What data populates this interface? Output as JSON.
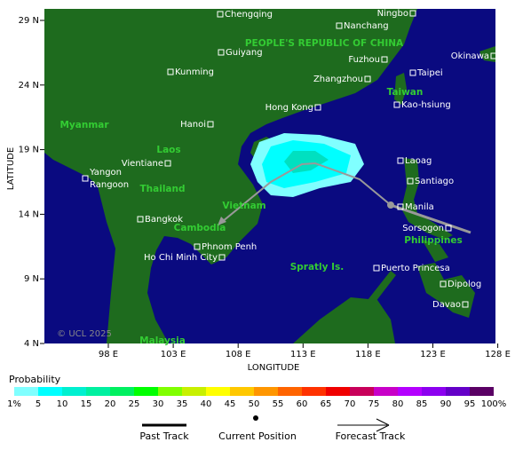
{
  "map": {
    "x_label": "LONGITUDE",
    "y_label": "LATITUDE",
    "xticks": [
      {
        "value": 98,
        "label": "98 E"
      },
      {
        "value": 103,
        "label": "103 E"
      },
      {
        "value": 108,
        "label": "108 E"
      },
      {
        "value": 113,
        "label": "113 E"
      },
      {
        "value": 118,
        "label": "118 E"
      },
      {
        "value": 123,
        "label": "123 E"
      },
      {
        "value": 128,
        "label": "128 E"
      }
    ],
    "yticks": [
      {
        "value": 29,
        "label": "29 N"
      },
      {
        "value": 24,
        "label": "24 N"
      },
      {
        "value": 19,
        "label": "19 N"
      },
      {
        "value": 14,
        "label": "14 N"
      },
      {
        "value": 9,
        "label": "9 N"
      },
      {
        "value": 4,
        "label": "4 N"
      }
    ],
    "countries": [
      "PEOPLE'S REPUBLIC OF CHINA",
      "Myanmar",
      "Laos",
      "Thailand",
      "Vietnam",
      "Cambodia",
      "Taiwan",
      "Philippines",
      "Spratly Is.",
      "Malaysia"
    ],
    "cities": [
      "Chengqing",
      "Nanchang",
      "Ningbo",
      "Guiyang",
      "Kunming",
      "Fuzhou",
      "Okinawa",
      "Taipei",
      "Zhangzhou",
      "Kao-hsiung",
      "Hong Kong",
      "Hanoi",
      "Laoag",
      "Santiago",
      "Yangon",
      "Rangoon",
      "Vientiane",
      "Manila",
      "Bangkok",
      "Sorsogon",
      "Phnom Penh",
      "Ho Chi Minh City",
      "Puerto Princesa",
      "Dipolog",
      "Davao"
    ],
    "copyright": "© UCL 2025"
  },
  "legend": {
    "title": "Probability",
    "labels": [
      "1%",
      "5",
      "10",
      "15",
      "20",
      "25",
      "30",
      "35",
      "40",
      "45",
      "50",
      "55",
      "60",
      "65",
      "70",
      "75",
      "80",
      "85",
      "90",
      "95",
      "100%"
    ],
    "colors": [
      "#80ffff",
      "#00ffff",
      "#00f0d0",
      "#00f0a0",
      "#00f060",
      "#00ff00",
      "#80ff00",
      "#c8f000",
      "#ffff00",
      "#ffc800",
      "#ff9600",
      "#ff6400",
      "#ff3200",
      "#f00000",
      "#c8005a",
      "#c800c8",
      "#b400ff",
      "#8c00f0",
      "#6400c8",
      "#5a0064"
    ],
    "track_labels": [
      "Past Track",
      "Current Position",
      "Forecast Track"
    ]
  }
}
